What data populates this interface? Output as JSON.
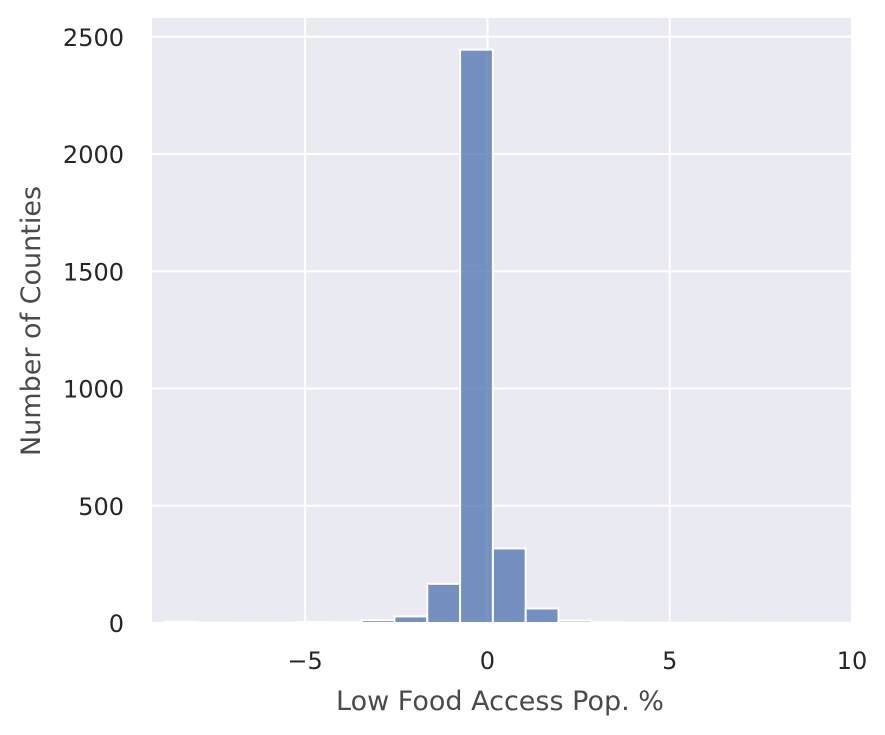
{
  "chart_data": {
    "type": "bar",
    "title": "",
    "xlabel": "Low Food Access Pop. %",
    "ylabel": "Number of Counties",
    "xlim": [
      -9.2,
      10.0
    ],
    "ylim": [
      0,
      2580
    ],
    "xticks": [
      -5,
      0,
      5,
      10
    ],
    "xtick_labels": [
      "−5",
      "0",
      "5",
      "10"
    ],
    "yticks": [
      0,
      500,
      1000,
      1500,
      2000,
      2500
    ],
    "ytick_labels": [
      "0",
      "500",
      "1000",
      "1500",
      "2000",
      "2500"
    ],
    "grid": true,
    "bar_color": "#4c72b0",
    "background_color": "#eaeaf2",
    "grid_color": "#ffffff",
    "bins": [
      {
        "start": -8.85,
        "end": -7.95,
        "count": 5
      },
      {
        "start": -7.95,
        "end": -7.05,
        "count": 2
      },
      {
        "start": -7.05,
        "end": -6.15,
        "count": 1
      },
      {
        "start": -6.15,
        "end": -5.25,
        "count": 1
      },
      {
        "start": -5.25,
        "end": -4.35,
        "count": 4
      },
      {
        "start": -4.35,
        "end": -3.45,
        "count": 3
      },
      {
        "start": -3.45,
        "end": -2.55,
        "count": 12
      },
      {
        "start": -2.55,
        "end": -1.65,
        "count": 28
      },
      {
        "start": -1.65,
        "end": -0.75,
        "count": 167
      },
      {
        "start": -0.75,
        "end": 0.15,
        "count": 2445
      },
      {
        "start": 0.15,
        "end": 1.05,
        "count": 318
      },
      {
        "start": 1.05,
        "end": 1.95,
        "count": 62
      },
      {
        "start": 1.95,
        "end": 2.85,
        "count": 10
      },
      {
        "start": 2.85,
        "end": 3.75,
        "count": 3
      },
      {
        "start": 3.75,
        "end": 4.65,
        "count": 2
      },
      {
        "start": 4.65,
        "end": 5.55,
        "count": 1
      },
      {
        "start": 5.55,
        "end": 6.45,
        "count": 2
      },
      {
        "start": 6.45,
        "end": 7.35,
        "count": 1
      },
      {
        "start": 7.35,
        "end": 8.25,
        "count": 1
      },
      {
        "start": 8.25,
        "end": 9.15,
        "count": 1
      },
      {
        "start": 9.15,
        "end": 10.05,
        "count": 1
      }
    ]
  }
}
